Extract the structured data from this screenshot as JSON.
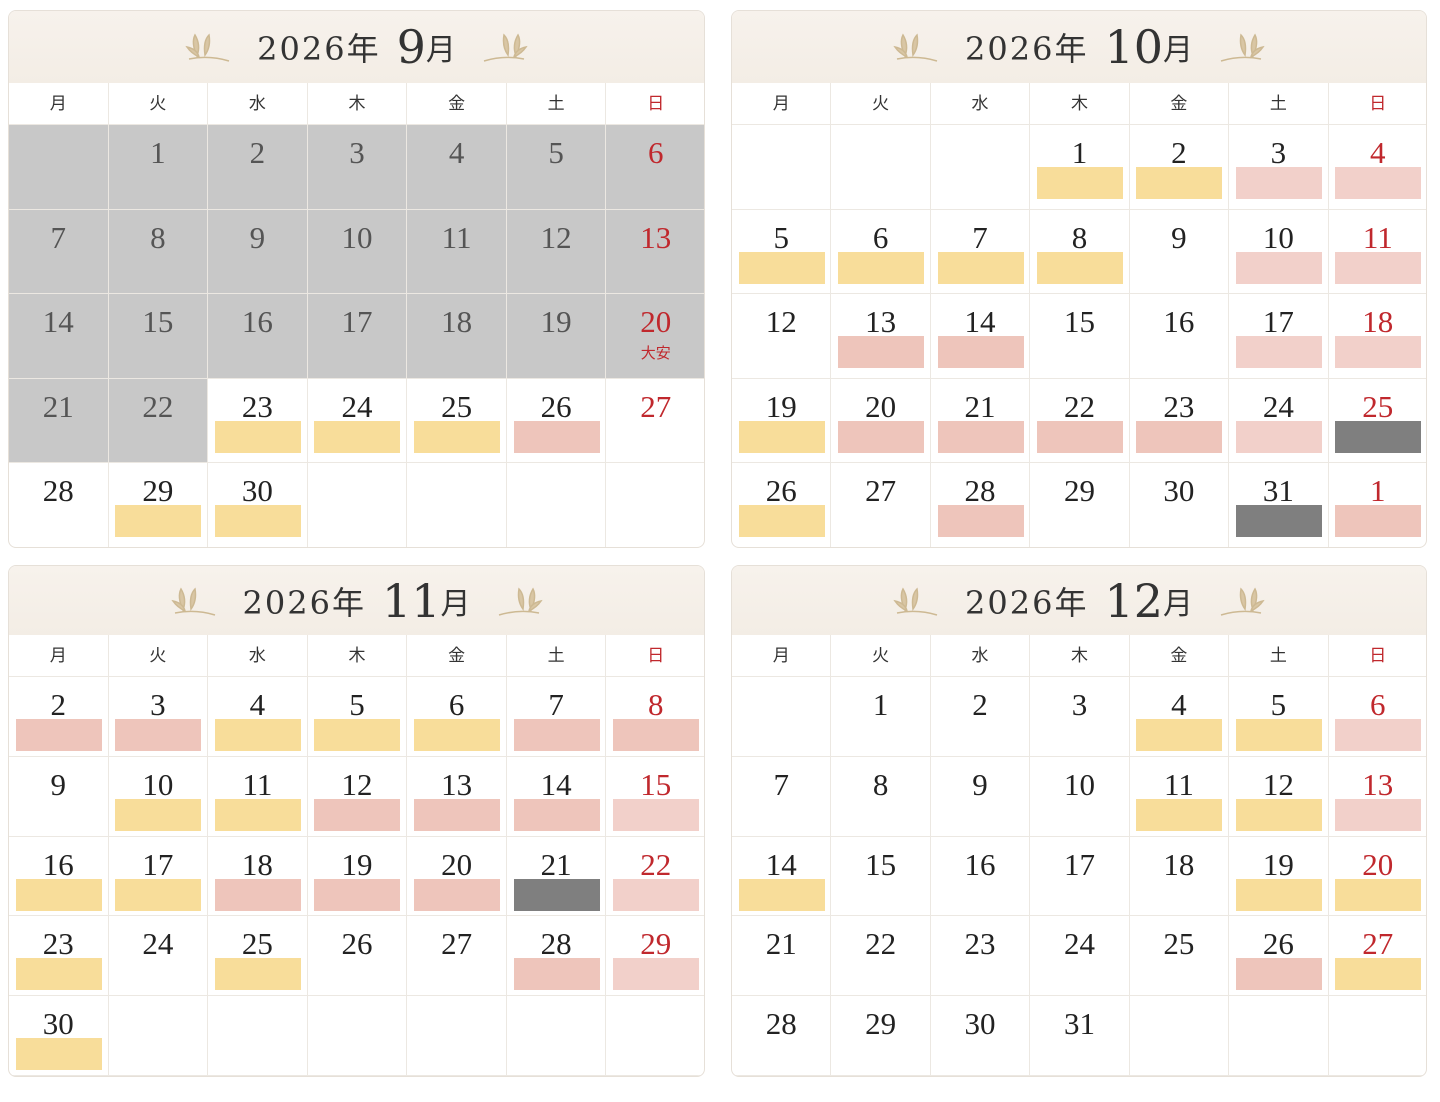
{
  "weekdays": [
    "月",
    "火",
    "水",
    "木",
    "金",
    "土",
    "日"
  ],
  "calendars": [
    {
      "year": "2026年",
      "month": "9",
      "month_suffix": "月",
      "weeks": [
        [
          {
            "bg": "#c8c8c8"
          },
          {
            "day": "1",
            "bg": "#c8c8c8"
          },
          {
            "day": "2",
            "bg": "#c8c8c8"
          },
          {
            "day": "3",
            "bg": "#c8c8c8"
          },
          {
            "day": "4",
            "bg": "#c8c8c8"
          },
          {
            "day": "5",
            "bg": "#c8c8c8"
          },
          {
            "day": "6",
            "bg": "#c8c8c8"
          }
        ],
        [
          {
            "day": "7",
            "bg": "#c8c8c8"
          },
          {
            "day": "8",
            "bg": "#c8c8c8"
          },
          {
            "day": "9",
            "bg": "#c8c8c8"
          },
          {
            "day": "10",
            "bg": "#c8c8c8"
          },
          {
            "day": "11",
            "bg": "#c8c8c8"
          },
          {
            "day": "12",
            "bg": "#c8c8c8"
          },
          {
            "day": "13",
            "bg": "#c8c8c8"
          }
        ],
        [
          {
            "day": "14",
            "bg": "#c8c8c8"
          },
          {
            "day": "15",
            "bg": "#c8c8c8"
          },
          {
            "day": "16",
            "bg": "#c8c8c8"
          },
          {
            "day": "17",
            "bg": "#c8c8c8"
          },
          {
            "day": "18",
            "bg": "#c8c8c8"
          },
          {
            "day": "19",
            "bg": "#c8c8c8"
          },
          {
            "day": "20",
            "bg": "#c8c8c8",
            "note": "大安"
          }
        ],
        [
          {
            "day": "21",
            "bg": "#c8c8c8"
          },
          {
            "day": "22",
            "bg": "#c8c8c8"
          },
          {
            "day": "23",
            "bar": "#f8dd9a"
          },
          {
            "day": "24",
            "bar": "#f8dd9a"
          },
          {
            "day": "25",
            "bar": "#f8dd9a"
          },
          {
            "day": "26",
            "bar": "#eec5bb"
          },
          {
            "day": "27"
          }
        ],
        [
          {
            "day": "28"
          },
          {
            "day": "29",
            "bar": "#f8dd9a"
          },
          {
            "day": "30",
            "bar": "#f8dd9a"
          },
          null,
          null,
          null,
          null
        ]
      ]
    },
    {
      "year": "2026年",
      "month": "10",
      "month_suffix": "月",
      "weeks": [
        [
          null,
          null,
          null,
          {
            "day": "1",
            "bar": "#f8dd9a"
          },
          {
            "day": "2",
            "bar": "#f8dd9a"
          },
          {
            "day": "3",
            "bar": "#f2d0ca"
          },
          {
            "day": "4",
            "bar": "#f2d0ca"
          }
        ],
        [
          {
            "day": "5",
            "bar": "#f8dd9a"
          },
          {
            "day": "6",
            "bar": "#f8dd9a"
          },
          {
            "day": "7",
            "bar": "#f8dd9a"
          },
          {
            "day": "8",
            "bar": "#f8dd9a"
          },
          {
            "day": "9"
          },
          {
            "day": "10",
            "bar": "#f2d0ca"
          },
          {
            "day": "11",
            "bar": "#f2d0ca"
          }
        ],
        [
          {
            "day": "12"
          },
          {
            "day": "13",
            "bar": "#eec5bb"
          },
          {
            "day": "14",
            "bar": "#eec5bb"
          },
          {
            "day": "15"
          },
          {
            "day": "16"
          },
          {
            "day": "17",
            "bar": "#f2d0ca"
          },
          {
            "day": "18",
            "bar": "#f2d0ca"
          }
        ],
        [
          {
            "day": "19",
            "bar": "#f8dd9a"
          },
          {
            "day": "20",
            "bar": "#eec5bb"
          },
          {
            "day": "21",
            "bar": "#eec5bb"
          },
          {
            "day": "22",
            "bar": "#eec5bb"
          },
          {
            "day": "23",
            "bar": "#eec5bb"
          },
          {
            "day": "24",
            "bar": "#f2d0ca"
          },
          {
            "day": "25",
            "bar": "#7f7f7f"
          }
        ],
        [
          {
            "day": "26",
            "bar": "#f8dd9a"
          },
          {
            "day": "27"
          },
          {
            "day": "28",
            "bar": "#eec5bb"
          },
          {
            "day": "29"
          },
          {
            "day": "30"
          },
          {
            "day": "31",
            "bar": "#7f7f7f"
          },
          {
            "day": "1",
            "bar": "#eec5bb"
          }
        ]
      ]
    },
    {
      "year": "2026年",
      "month": "11",
      "month_suffix": "月",
      "weeks": [
        [
          {
            "day": "2",
            "bar": "#eec5bb"
          },
          {
            "day": "3",
            "bar": "#eec5bb"
          },
          {
            "day": "4",
            "bar": "#f8dd9a"
          },
          {
            "day": "5",
            "bar": "#f8dd9a"
          },
          {
            "day": "6",
            "bar": "#f8dd9a"
          },
          {
            "day": "7",
            "bar": "#eec5bb"
          },
          {
            "day": "8",
            "bar": "#eec5bb"
          }
        ],
        [
          {
            "day": "9"
          },
          {
            "day": "10",
            "bar": "#f8dd9a"
          },
          {
            "day": "11",
            "bar": "#f8dd9a"
          },
          {
            "day": "12",
            "bar": "#eec5bb"
          },
          {
            "day": "13",
            "bar": "#eec5bb"
          },
          {
            "day": "14",
            "bar": "#eec5bb"
          },
          {
            "day": "15",
            "bar": "#f2d0ca"
          }
        ],
        [
          {
            "day": "16",
            "bar": "#f8dd9a"
          },
          {
            "day": "17",
            "bar": "#f8dd9a"
          },
          {
            "day": "18",
            "bar": "#eec5bb"
          },
          {
            "day": "19",
            "bar": "#eec5bb"
          },
          {
            "day": "20",
            "bar": "#eec5bb"
          },
          {
            "day": "21",
            "bar": "#7f7f7f"
          },
          {
            "day": "22",
            "bar": "#f2d0ca"
          }
        ],
        [
          {
            "day": "23",
            "bar": "#f8dd9a"
          },
          {
            "day": "24"
          },
          {
            "day": "25",
            "bar": "#f8dd9a"
          },
          {
            "day": "26"
          },
          {
            "day": "27"
          },
          {
            "day": "28",
            "bar": "#eec5bb"
          },
          {
            "day": "29",
            "bar": "#f2d0ca"
          }
        ],
        [
          {
            "day": "30",
            "bar": "#f8dd9a"
          },
          null,
          null,
          null,
          null,
          null,
          null
        ]
      ]
    },
    {
      "year": "2026年",
      "month": "12",
      "month_suffix": "月",
      "weeks": [
        [
          null,
          {
            "day": "1"
          },
          {
            "day": "2"
          },
          {
            "day": "3"
          },
          {
            "day": "4",
            "bar": "#f8dd9a"
          },
          {
            "day": "5",
            "bar": "#f8dd9a"
          },
          {
            "day": "6",
            "bar": "#f2d0ca"
          }
        ],
        [
          {
            "day": "7"
          },
          {
            "day": "8"
          },
          {
            "day": "9"
          },
          {
            "day": "10"
          },
          {
            "day": "11",
            "bar": "#f8dd9a"
          },
          {
            "day": "12",
            "bar": "#f8dd9a"
          },
          {
            "day": "13",
            "bar": "#f2d0ca"
          }
        ],
        [
          {
            "day": "14",
            "bar": "#f8dd9a"
          },
          {
            "day": "15"
          },
          {
            "day": "16"
          },
          {
            "day": "17"
          },
          {
            "day": "18"
          },
          {
            "day": "19",
            "bar": "#f8dd9a"
          },
          {
            "day": "20",
            "bar": "#f8dd9a"
          }
        ],
        [
          {
            "day": "21"
          },
          {
            "day": "22"
          },
          {
            "day": "23"
          },
          {
            "day": "24"
          },
          {
            "day": "25"
          },
          {
            "day": "26",
            "bar": "#eec5bb"
          },
          {
            "day": "27",
            "bar": "#f8dd9a"
          }
        ],
        [
          {
            "day": "28"
          },
          {
            "day": "29"
          },
          {
            "day": "30"
          },
          {
            "day": "31"
          },
          null,
          null,
          null
        ]
      ]
    }
  ]
}
